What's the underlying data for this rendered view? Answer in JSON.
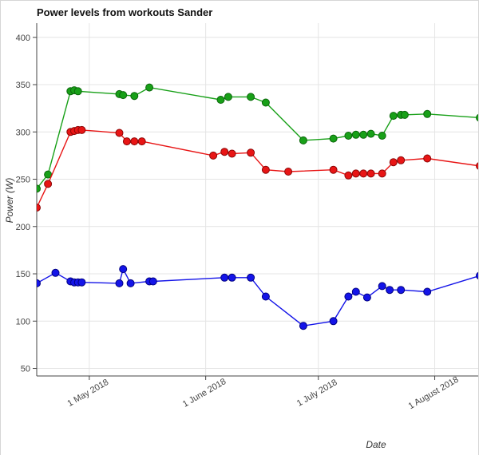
{
  "chart_data": {
    "type": "line",
    "title": "Power levels from workouts Sander",
    "xlabel": "Date",
    "ylabel": "Power (W)",
    "x_range": [
      "2018-04-17",
      "2018-08-13"
    ],
    "ylim": [
      42,
      415
    ],
    "y_ticks": [
      50,
      100,
      150,
      200,
      250,
      300,
      350,
      400
    ],
    "x_ticks": [
      {
        "date": "2018-05-01",
        "label": "1 May 2018"
      },
      {
        "date": "2018-06-01",
        "label": "1 June 2018"
      },
      {
        "date": "2018-07-01",
        "label": "1 July 2018"
      },
      {
        "date": "2018-08-01",
        "label": "1 August 2018"
      }
    ],
    "grid": true,
    "legend": "none",
    "style": {
      "grid_color": "#e4e4e4",
      "axis_color": "#444444",
      "tick_label_color": "#444444",
      "marker_radius": 4.5,
      "line_width": 1.4
    },
    "series": [
      {
        "name": "green",
        "color": "#18a018",
        "marker_edge": "#0b660b",
        "points": [
          [
            "2018-04-17",
            240
          ],
          [
            "2018-04-20",
            255
          ],
          [
            "2018-04-26",
            343
          ],
          [
            "2018-04-27",
            344
          ],
          [
            "2018-04-28",
            343
          ],
          [
            "2018-05-09",
            340
          ],
          [
            "2018-05-10",
            339
          ],
          [
            "2018-05-13",
            338
          ],
          [
            "2018-05-17",
            347
          ],
          [
            "2018-06-05",
            334
          ],
          [
            "2018-06-07",
            337
          ],
          [
            "2018-06-13",
            337
          ],
          [
            "2018-06-17",
            331
          ],
          [
            "2018-06-27",
            291
          ],
          [
            "2018-07-05",
            293
          ],
          [
            "2018-07-09",
            296
          ],
          [
            "2018-07-11",
            297
          ],
          [
            "2018-07-13",
            297
          ],
          [
            "2018-07-15",
            298
          ],
          [
            "2018-07-18",
            296
          ],
          [
            "2018-07-21",
            317
          ],
          [
            "2018-07-23",
            318
          ],
          [
            "2018-07-24",
            318
          ],
          [
            "2018-07-30",
            319
          ],
          [
            "2018-08-13",
            315
          ]
        ]
      },
      {
        "name": "red",
        "color": "#e81515",
        "marker_edge": "#8c0606",
        "points": [
          [
            "2018-04-17",
            220
          ],
          [
            "2018-04-20",
            245
          ],
          [
            "2018-04-26",
            300
          ],
          [
            "2018-04-27",
            301
          ],
          [
            "2018-04-28",
            302
          ],
          [
            "2018-04-29",
            302
          ],
          [
            "2018-05-09",
            299
          ],
          [
            "2018-05-11",
            290
          ],
          [
            "2018-05-13",
            290
          ],
          [
            "2018-05-15",
            290
          ],
          [
            "2018-06-03",
            275
          ],
          [
            "2018-06-06",
            279
          ],
          [
            "2018-06-08",
            277
          ],
          [
            "2018-06-13",
            278
          ],
          [
            "2018-06-17",
            260
          ],
          [
            "2018-06-23",
            258
          ],
          [
            "2018-07-05",
            260
          ],
          [
            "2018-07-09",
            254
          ],
          [
            "2018-07-11",
            256
          ],
          [
            "2018-07-13",
            256
          ],
          [
            "2018-07-15",
            256
          ],
          [
            "2018-07-18",
            256
          ],
          [
            "2018-07-21",
            268
          ],
          [
            "2018-07-23",
            270
          ],
          [
            "2018-07-30",
            272
          ],
          [
            "2018-08-13",
            264
          ]
        ]
      },
      {
        "name": "blue",
        "color": "#1414e8",
        "marker_edge": "#000080",
        "points": [
          [
            "2018-04-17",
            140
          ],
          [
            "2018-04-22",
            151
          ],
          [
            "2018-04-26",
            142
          ],
          [
            "2018-04-27",
            141
          ],
          [
            "2018-04-28",
            141
          ],
          [
            "2018-04-29",
            141
          ],
          [
            "2018-05-09",
            140
          ],
          [
            "2018-05-10",
            155
          ],
          [
            "2018-05-12",
            140
          ],
          [
            "2018-05-17",
            142
          ],
          [
            "2018-05-18",
            142
          ],
          [
            "2018-06-06",
            146
          ],
          [
            "2018-06-08",
            146
          ],
          [
            "2018-06-13",
            146
          ],
          [
            "2018-06-17",
            126
          ],
          [
            "2018-06-27",
            95
          ],
          [
            "2018-07-05",
            100
          ],
          [
            "2018-07-09",
            126
          ],
          [
            "2018-07-11",
            131
          ],
          [
            "2018-07-14",
            125
          ],
          [
            "2018-07-18",
            137
          ],
          [
            "2018-07-20",
            133
          ],
          [
            "2018-07-23",
            133
          ],
          [
            "2018-07-30",
            131
          ],
          [
            "2018-08-13",
            148
          ]
        ]
      }
    ]
  }
}
